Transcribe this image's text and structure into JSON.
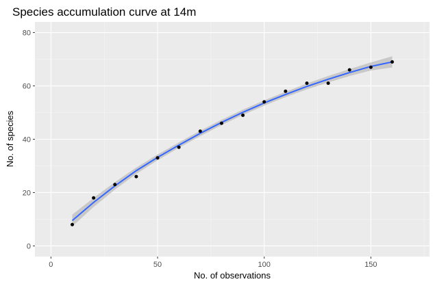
{
  "chart_data": {
    "type": "scatter",
    "title": "Species accumulation curve at 14m",
    "xlabel": "No. of observations",
    "ylabel": "No. of species",
    "xlim": [
      -7.5,
      177.5
    ],
    "ylim": [
      -4,
      84
    ],
    "xticks": [
      0,
      50,
      100,
      150
    ],
    "yticks": [
      0,
      20,
      40,
      60,
      80
    ],
    "x_tick_labels": [
      "0",
      "50",
      "100",
      "150"
    ],
    "y_tick_labels": [
      "0",
      "20",
      "40",
      "60",
      "80"
    ],
    "grid": true,
    "points": [
      {
        "x": 10,
        "y": 8
      },
      {
        "x": 20,
        "y": 18
      },
      {
        "x": 30,
        "y": 23
      },
      {
        "x": 40,
        "y": 26
      },
      {
        "x": 50,
        "y": 33
      },
      {
        "x": 60,
        "y": 37
      },
      {
        "x": 70,
        "y": 43
      },
      {
        "x": 80,
        "y": 46
      },
      {
        "x": 90,
        "y": 49
      },
      {
        "x": 100,
        "y": 54
      },
      {
        "x": 110,
        "y": 58
      },
      {
        "x": 120,
        "y": 61
      },
      {
        "x": 130,
        "y": 61
      },
      {
        "x": 140,
        "y": 66
      },
      {
        "x": 150,
        "y": 67
      },
      {
        "x": 160,
        "y": 69
      }
    ],
    "smooth_fit": {
      "x": [
        10,
        20,
        30,
        40,
        50,
        60,
        70,
        80,
        90,
        100,
        110,
        120,
        130,
        140,
        150,
        160
      ],
      "y": [
        9.5,
        16.3,
        22.5,
        28.2,
        33.2,
        37.8,
        42.2,
        46.3,
        50.1,
        53.6,
        56.8,
        59.8,
        62.5,
        65.0,
        67.3,
        69.0
      ],
      "ci_low": [
        7.3,
        14.6,
        21.1,
        27.0,
        32.1,
        36.8,
        41.2,
        45.3,
        49.1,
        52.6,
        55.8,
        58.7,
        61.3,
        63.7,
        65.8,
        66.9
      ],
      "ci_high": [
        11.7,
        18.0,
        23.9,
        29.4,
        34.3,
        38.8,
        43.2,
        47.3,
        51.1,
        54.6,
        57.8,
        60.9,
        63.7,
        66.3,
        68.8,
        71.1
      ]
    },
    "colors": {
      "panel": "#ebebeb",
      "grid_major": "#ffffff",
      "grid_minor": "#f5f5f5",
      "line": "#3366ff",
      "ribbon": "#c2c2c2",
      "point": "#000000"
    }
  }
}
